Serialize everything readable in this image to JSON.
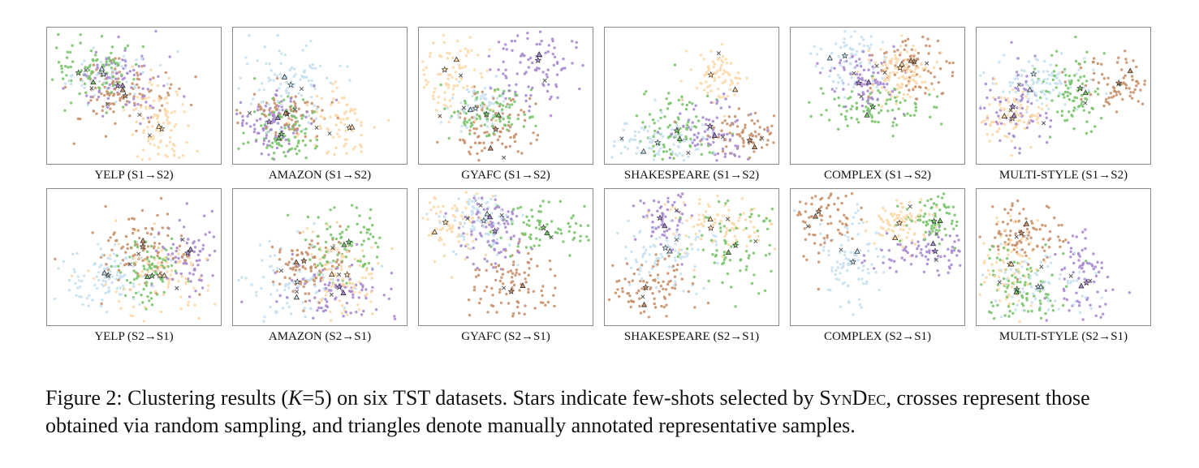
{
  "colors": {
    "cluster_1": "#c7e0ef",
    "cluster_2": "#fdd8a8",
    "cluster_3": "#79c46b",
    "cluster_4": "#a98ad0",
    "cluster_5": "#c9916b",
    "marker_dark": "#222222",
    "marker_light": "#555555"
  },
  "legend_semantics": {
    "star": "few-shots selected by SYNDEC",
    "cross": "random sampling",
    "triangle": "manually annotated representative samples"
  },
  "panels": [
    {
      "id": "yelp-s1-s2",
      "label": "YELP (S1→S2)"
    },
    {
      "id": "amazon-s1-s2",
      "label": "AMAZON (S1→S2)"
    },
    {
      "id": "gyafc-s1-s2",
      "label": "GYAFC (S1→S2)"
    },
    {
      "id": "shakespeare-s1-s2",
      "label": "SHAKESPEARE (S1→S2)"
    },
    {
      "id": "complex-s1-s2",
      "label": "COMPLEX  (S1→S2)"
    },
    {
      "id": "multistyle-s1-s2",
      "label": "MULTI-STYLE  (S1→S2)"
    },
    {
      "id": "yelp-s2-s1",
      "label": "YELP (S2→S1)"
    },
    {
      "id": "amazon-s2-s1",
      "label": "AMAZON (S2→S1)"
    },
    {
      "id": "gyafc-s2-s1",
      "label": "GYAFC (S2→S1)"
    },
    {
      "id": "shakespeare-s2-s1",
      "label": "SHAKESPEARE (S2→S1)"
    },
    {
      "id": "complex-s2-s1",
      "label": "COMPLEX  (S2→S1)"
    },
    {
      "id": "multistyle-s2-s1",
      "label": "MULTI-STYLE  (S2→S1)"
    }
  ],
  "caption": {
    "prefix": "Figure 2: Clustering results (",
    "math_var": "K",
    "math_rest": "=5) on six TST datasets. Stars indicate few-shots selected by ",
    "method_name": "SynDec",
    "suffix": ", crosses represent those obtained via random sampling, and triangles denote manually annotated representative samples."
  }
}
